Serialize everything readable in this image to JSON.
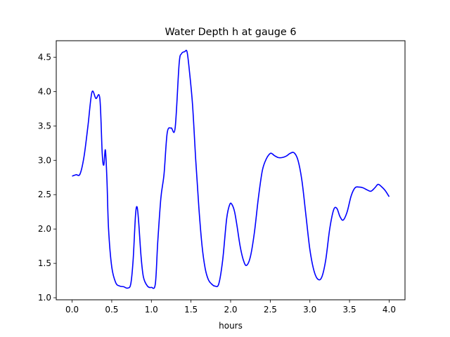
{
  "chart_data": {
    "type": "line",
    "title": "Water Depth h at gauge 6",
    "xlabel": "hours",
    "ylabel": "",
    "xlim": [
      -0.2,
      4.2
    ],
    "ylim": [
      0.97,
      4.74
    ],
    "xticks": [
      0.0,
      0.5,
      1.0,
      1.5,
      2.0,
      2.5,
      3.0,
      3.5,
      4.0
    ],
    "xtick_labels": [
      "0.0",
      "0.5",
      "1.0",
      "1.5",
      "2.0",
      "2.5",
      "3.0",
      "3.5",
      "4.0"
    ],
    "yticks": [
      1.0,
      1.5,
      2.0,
      2.5,
      3.0,
      3.5,
      4.0,
      4.5
    ],
    "ytick_labels": [
      "1.0",
      "1.5",
      "2.0",
      "2.5",
      "3.0",
      "3.5",
      "4.0",
      "4.5"
    ],
    "grid": false,
    "series": [
      {
        "color": "#0000ff",
        "x": [
          0.0,
          0.05,
          0.1,
          0.15,
          0.2,
          0.25,
          0.3,
          0.35,
          0.38,
          0.4,
          0.42,
          0.44,
          0.46,
          0.5,
          0.55,
          0.6,
          0.65,
          0.7,
          0.74,
          0.77,
          0.8,
          0.82,
          0.84,
          0.87,
          0.9,
          0.95,
          1.0,
          1.05,
          1.08,
          1.12,
          1.16,
          1.2,
          1.25,
          1.3,
          1.35,
          1.38,
          1.42,
          1.45,
          1.48,
          1.52,
          1.56,
          1.6,
          1.64,
          1.68,
          1.72,
          1.76,
          1.8,
          1.85,
          1.9,
          1.95,
          1.99,
          2.02,
          2.05,
          2.08,
          2.12,
          2.16,
          2.2,
          2.25,
          2.3,
          2.35,
          2.4,
          2.45,
          2.5,
          2.53,
          2.55,
          2.6,
          2.65,
          2.7,
          2.75,
          2.8,
          2.85,
          2.9,
          2.95,
          3.0,
          3.05,
          3.1,
          3.15,
          3.2,
          3.25,
          3.3,
          3.34,
          3.38,
          3.42,
          3.47,
          3.52,
          3.57,
          3.62,
          3.67,
          3.72,
          3.77,
          3.82,
          3.86,
          3.9,
          3.95,
          4.0
        ],
        "y": [
          2.77,
          2.79,
          2.8,
          3.05,
          3.5,
          3.99,
          3.9,
          3.9,
          3.1,
          2.93,
          3.15,
          2.7,
          2.0,
          1.45,
          1.22,
          1.17,
          1.16,
          1.14,
          1.2,
          1.55,
          2.2,
          2.32,
          2.1,
          1.6,
          1.3,
          1.17,
          1.15,
          1.2,
          1.8,
          2.45,
          2.8,
          3.4,
          3.47,
          3.47,
          4.4,
          4.55,
          4.58,
          4.58,
          4.3,
          3.8,
          3.0,
          2.3,
          1.75,
          1.42,
          1.26,
          1.2,
          1.17,
          1.2,
          1.55,
          2.15,
          2.36,
          2.35,
          2.25,
          2.05,
          1.75,
          1.55,
          1.47,
          1.6,
          1.95,
          2.45,
          2.85,
          3.02,
          3.1,
          3.09,
          3.07,
          3.04,
          3.04,
          3.06,
          3.1,
          3.11,
          3.0,
          2.7,
          2.2,
          1.7,
          1.4,
          1.27,
          1.3,
          1.55,
          2.0,
          2.28,
          2.3,
          2.18,
          2.13,
          2.25,
          2.48,
          2.6,
          2.61,
          2.6,
          2.57,
          2.55,
          2.6,
          2.65,
          2.62,
          2.56,
          2.47
        ]
      }
    ]
  }
}
